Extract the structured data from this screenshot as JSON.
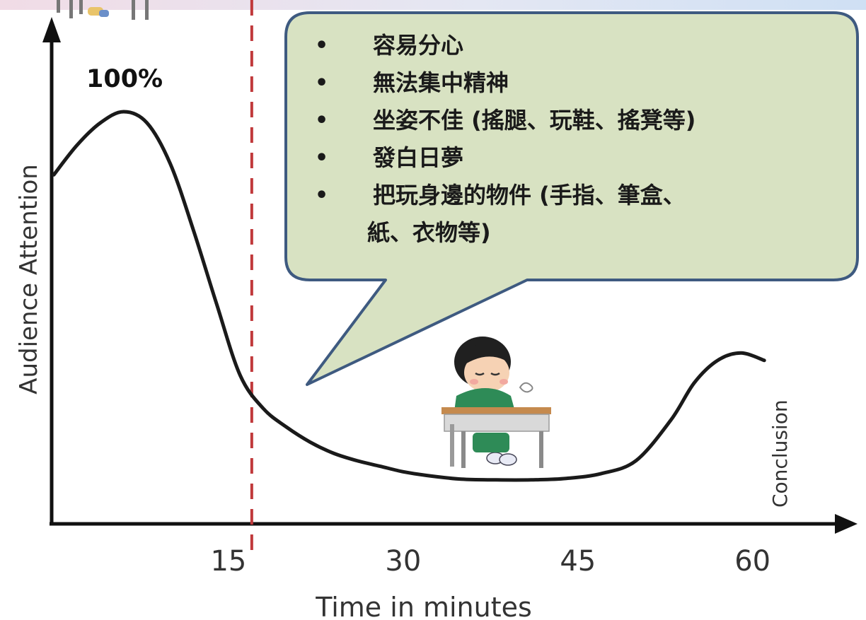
{
  "chart_data": {
    "type": "line",
    "title": "",
    "xlabel": "Time in minutes",
    "ylabel": "Audience Attention",
    "x_ticks": [
      15,
      30,
      45,
      60
    ],
    "xlim": [
      0,
      65
    ],
    "ylim": [
      0,
      100
    ],
    "series": [
      {
        "x": [
          0,
          2,
          4,
          6,
          8,
          10,
          12,
          14,
          16,
          18,
          20,
          22,
          24,
          26,
          28,
          30,
          32,
          35,
          38,
          41,
          44,
          47,
          50,
          53,
          55,
          57,
          59,
          61
        ],
        "values": [
          83,
          91,
          97,
          100,
          97,
          86,
          68,
          48,
          29,
          20,
          15,
          11,
          8,
          6,
          4.5,
          3,
          2,
          1,
          0.8,
          0.8,
          1.2,
          2.5,
          6,
          17,
          27,
          33,
          35,
          33
        ]
      }
    ],
    "annotations": {
      "peak_label": "100%",
      "end_marker": "Conclusion",
      "reference_line_x": 17
    },
    "colors": {
      "curve": "#1a1a1a",
      "reference_line": "#c0393b",
      "bubble_fill": "#d8e2c2",
      "bubble_border": "#3e5a80"
    }
  },
  "bubble": {
    "items": [
      "容易分心",
      "無法集中精神",
      "坐姿不佳 (搖腿、玩鞋、搖凳等)",
      "發白日夢",
      "把玩身邊的物件 (手指、筆盒、",
      "紙、衣物等)"
    ]
  }
}
